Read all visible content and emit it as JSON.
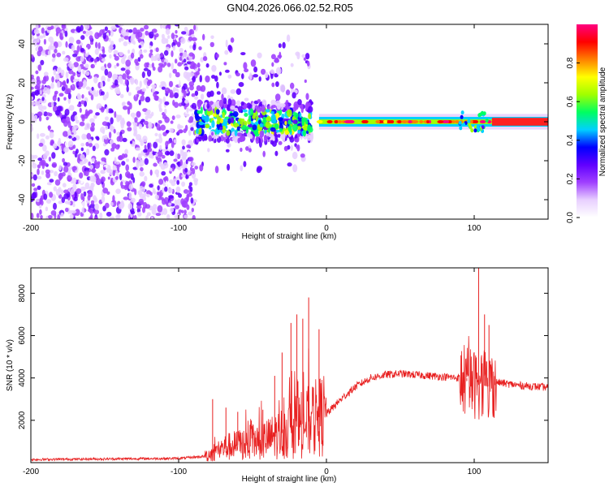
{
  "chart_data": [
    {
      "type": "heatmap",
      "title": "GN04.2026.066.02.52.R05",
      "xlabel": "Height of straight line (km)",
      "ylabel": "Frequency (Hz)",
      "xlim": [
        -200,
        150
      ],
      "ylim": [
        -50,
        50
      ],
      "xticks": [
        -200,
        -100,
        0,
        100
      ],
      "yticks": [
        -40,
        -20,
        0,
        20,
        40
      ],
      "colorbar": {
        "label": "Normalized spectral amplitude",
        "range": [
          0.0,
          1.0
        ],
        "ticks": [
          0.0,
          0.2,
          0.4,
          0.6,
          0.8
        ],
        "tick_labels": [
          "0.0",
          "0.2",
          "0.4",
          "0.6",
          "0.8"
        ],
        "colors": [
          "#ffffff",
          "#e8d0ff",
          "#a040ff",
          "#6000ff",
          "#0000ff",
          "#00d0ff",
          "#00ff60",
          "#a0ff00",
          "#ffff00",
          "#ff8000",
          "#ff0000",
          "#ff0080"
        ]
      },
      "regions": [
        {
          "name": "noise",
          "x": [
            -200,
            -88
          ],
          "amplitude": 0.15
        },
        {
          "name": "onset",
          "x": [
            -88,
            -10
          ],
          "freq_spread": [
            -25,
            45
          ],
          "amplitude": 0.3
        },
        {
          "name": "signal-line",
          "x": [
            -5,
            150
          ],
          "freq": 0,
          "amplitude": 0.6
        }
      ]
    },
    {
      "type": "line",
      "title": "",
      "xlabel": "Height of straight line (km)",
      "ylabel": "SNR (10 * v/v)",
      "xlim": [
        -200,
        150
      ],
      "ylim": [
        0,
        9200
      ],
      "xticks": [
        -200,
        -100,
        0,
        100
      ],
      "yticks": [
        2000,
        4000,
        6000,
        8000
      ],
      "color": "#e82020",
      "envelope": {
        "x": [
          -200,
          -100,
          -82,
          -70,
          -55,
          -40,
          -30,
          -20,
          -10,
          0,
          10,
          20,
          30,
          40,
          50,
          60,
          70,
          80,
          90,
          100,
          110,
          115,
          130,
          150
        ],
        "y": [
          150,
          200,
          300,
          700,
          900,
          1100,
          1400,
          1700,
          2000,
          2300,
          3000,
          3600,
          4000,
          4150,
          4200,
          4150,
          4100,
          4050,
          4000,
          3700,
          3600,
          3800,
          3650,
          3550
        ]
      },
      "spikes": [
        {
          "x": -77,
          "y": 3000
        },
        {
          "x": -68,
          "y": 2600
        },
        {
          "x": -60,
          "y": 2400
        },
        {
          "x": -43,
          "y": 2500
        },
        {
          "x": -35,
          "y": 4100
        },
        {
          "x": -30,
          "y": 5200
        },
        {
          "x": -24,
          "y": 6600
        },
        {
          "x": -20,
          "y": 7000
        },
        {
          "x": -16,
          "y": 6800
        },
        {
          "x": -12,
          "y": 7800
        },
        {
          "x": -5,
          "y": 6300
        },
        {
          "x": 95,
          "y": 4000
        },
        {
          "x": 103,
          "y": 9200
        },
        {
          "x": 107,
          "y": 7000
        },
        {
          "x": 110,
          "y": 6500
        }
      ]
    }
  ]
}
